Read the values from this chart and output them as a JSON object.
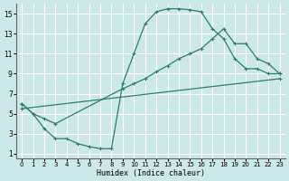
{
  "xlabel": "Humidex (Indice chaleur)",
  "bg_color": "#cce8e8",
  "grid_color": "#ffffff",
  "line_color": "#2e7d6e",
  "xlim": [
    -0.5,
    23.5
  ],
  "ylim": [
    0.5,
    16
  ],
  "xticks": [
    0,
    1,
    2,
    3,
    4,
    5,
    6,
    7,
    8,
    9,
    10,
    11,
    12,
    13,
    14,
    15,
    16,
    17,
    18,
    19,
    20,
    21,
    22,
    23
  ],
  "yticks": [
    1,
    3,
    5,
    7,
    9,
    11,
    13,
    15
  ],
  "line1_x": [
    0,
    1,
    2,
    3,
    4,
    5,
    6,
    7,
    8,
    9,
    10,
    11,
    12,
    13,
    14,
    15,
    16,
    17,
    18,
    19,
    20,
    21,
    22,
    23
  ],
  "line1_y": [
    6.0,
    5.0,
    3.5,
    2.5,
    2.5,
    2.0,
    1.7,
    1.5,
    1.5,
    8.0,
    11.0,
    14.0,
    15.2,
    15.5,
    15.5,
    15.4,
    15.2,
    13.5,
    12.5,
    10.5,
    9.5,
    9.5,
    9.0,
    9.0
  ],
  "line2_x": [
    0,
    1,
    2,
    3,
    9,
    10,
    11,
    12,
    13,
    14,
    15,
    16,
    17,
    18,
    19,
    20,
    21,
    22,
    23
  ],
  "line2_y": [
    6.0,
    5.0,
    4.5,
    4.0,
    7.5,
    8.0,
    8.5,
    9.2,
    9.8,
    10.5,
    11.0,
    11.5,
    12.5,
    13.5,
    12.0,
    12.0,
    10.5,
    10.0,
    9.0
  ],
  "line3_x": [
    0,
    23
  ],
  "line3_y": [
    5.5,
    8.5
  ],
  "marker": "+"
}
